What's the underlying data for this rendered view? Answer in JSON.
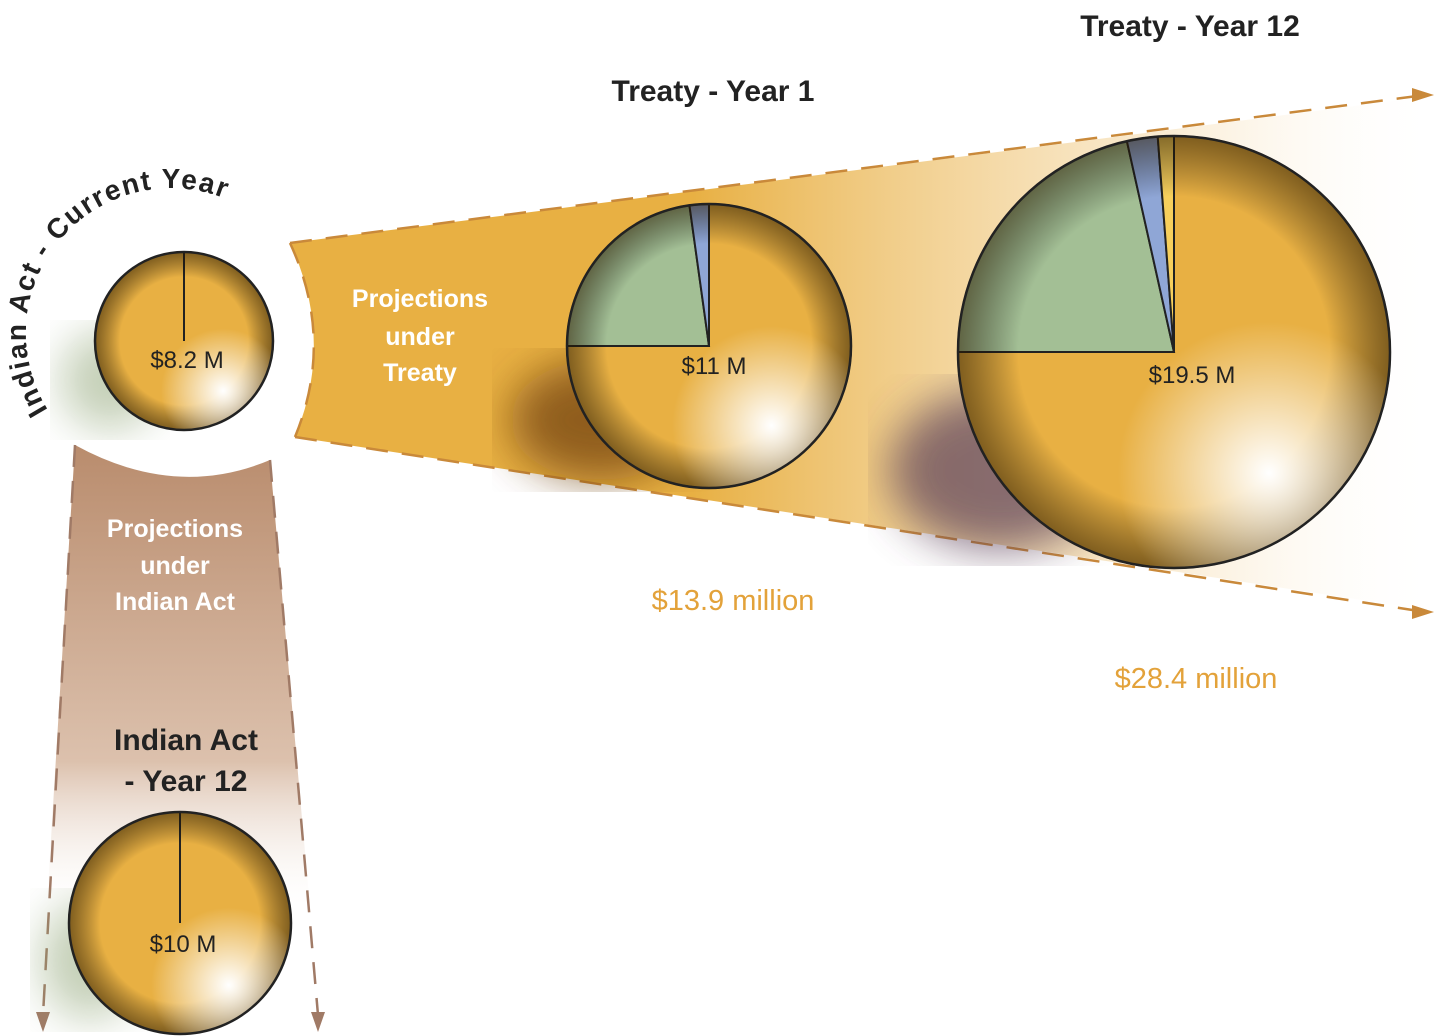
{
  "pies": [
    {
      "title": "Indian Act - Current Year",
      "label": "$8.2 M",
      "slices": [
        {
          "color": "#e8b043",
          "value": 100
        }
      ]
    },
    {
      "title": "Treaty - Year 1",
      "label": "$11 M",
      "slices": [
        {
          "color": "#e8b043",
          "value": 75
        },
        {
          "color": "#a3bf95",
          "value": 22.8
        },
        {
          "color": "#8fa6d6",
          "value": 2.2
        }
      ]
    },
    {
      "title": "Treaty - Year 12",
      "label": "$19.5 M",
      "slices": [
        {
          "color": "#e8b043",
          "value": 75
        },
        {
          "color": "#a3bf95",
          "value": 21.5
        },
        {
          "color": "#8fa6d6",
          "value": 2.3
        },
        {
          "color": "#f7cf5c",
          "value": 1.2
        }
      ]
    },
    {
      "title_lines": [
        "Indian Act",
        "- Year 12"
      ],
      "label": "$10 M",
      "slices": [
        {
          "color": "#e8b043",
          "value": 100
        }
      ]
    }
  ],
  "projections": [
    {
      "lines": [
        "Projections",
        "under",
        "Treaty"
      ]
    },
    {
      "lines": [
        "Projections",
        "under",
        "Indian Act"
      ]
    }
  ],
  "totals": [
    "$13.9 million",
    "$28.4 million"
  ]
}
